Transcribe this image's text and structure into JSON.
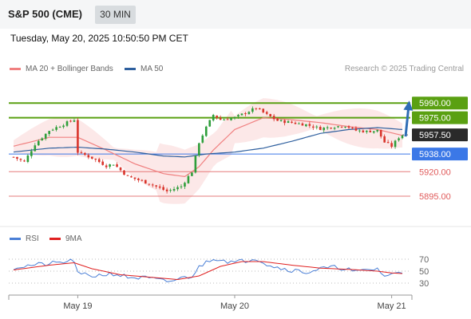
{
  "header": {
    "symbol": "S&P 500 (CME)",
    "timeframe": "30 MIN"
  },
  "datetime": "Tuesday, May 20, 2025 10:50:50 PM CET",
  "credit": "Research © 2025 Trading Central",
  "colors": {
    "resistance": "#5aa012",
    "support": "#e05a5a",
    "pivot": "#3b78e7",
    "up": "#2e9e3a",
    "down": "#d9342b",
    "ma20": "#f08080",
    "ma50": "#2e5f9e",
    "rsi": "#4a7fd6",
    "rsi_ma": "#e02020",
    "arrow": "#2f6db5"
  },
  "chart_data": [
    {
      "type": "candlestick",
      "legend": [
        "MA 20 + Bollinger Bands",
        "MA 50"
      ],
      "x_ticks": [
        "May 19",
        "May 20",
        "May 21"
      ],
      "ylim": [
        5882,
        6004
      ],
      "price_levels": [
        {
          "value": 5990.0,
          "label": "5990.00",
          "kind": "resistance"
        },
        {
          "value": 5975.0,
          "label": "5975.00",
          "kind": "resistance"
        },
        {
          "value": 5957.5,
          "label": "5957.50",
          "kind": "last"
        },
        {
          "value": 5938.0,
          "label": "5938.00",
          "kind": "pivot"
        },
        {
          "value": 5920.0,
          "label": "5920.00",
          "kind": "support"
        },
        {
          "value": 5895.0,
          "label": "5895.00",
          "kind": "support"
        }
      ],
      "last_price": 5957.5,
      "anchors": [
        [
          0,
          5935
        ],
        [
          3,
          5930
        ],
        [
          6,
          5948
        ],
        [
          10,
          5962
        ],
        [
          15,
          5970
        ],
        [
          17,
          5973
        ],
        [
          18,
          5940
        ],
        [
          22,
          5934
        ],
        [
          26,
          5926
        ],
        [
          28,
          5928
        ],
        [
          32,
          5915
        ],
        [
          38,
          5908
        ],
        [
          43,
          5900
        ],
        [
          47,
          5905
        ],
        [
          50,
          5920
        ],
        [
          52,
          5950
        ],
        [
          54,
          5965
        ],
        [
          56,
          5978
        ],
        [
          58,
          5973
        ],
        [
          62,
          5975
        ],
        [
          68,
          5985
        ],
        [
          71,
          5978
        ],
        [
          74,
          5972
        ],
        [
          78,
          5970
        ],
        [
          82,
          5968
        ],
        [
          86,
          5964
        ],
        [
          90,
          5966
        ],
        [
          93,
          5967
        ],
        [
          96,
          5962
        ],
        [
          99,
          5961
        ],
        [
          102,
          5962
        ],
        [
          104,
          5950
        ],
        [
          106,
          5946
        ],
        [
          108,
          5955
        ],
        [
          109,
          5957.5
        ]
      ],
      "ma20": [
        [
          0,
          5946
        ],
        [
          10,
          5955
        ],
        [
          18,
          5955
        ],
        [
          26,
          5942
        ],
        [
          34,
          5928
        ],
        [
          42,
          5918
        ],
        [
          48,
          5915
        ],
        [
          52,
          5925
        ],
        [
          56,
          5942
        ],
        [
          62,
          5963
        ],
        [
          70,
          5975
        ],
        [
          78,
          5973
        ],
        [
          86,
          5970
        ],
        [
          94,
          5966
        ],
        [
          102,
          5963
        ],
        [
          109,
          5957
        ]
      ],
      "ma50": [
        [
          0,
          5940
        ],
        [
          10,
          5944
        ],
        [
          18,
          5945
        ],
        [
          26,
          5943
        ],
        [
          34,
          5940
        ],
        [
          42,
          5936
        ],
        [
          48,
          5935
        ],
        [
          54,
          5938
        ],
        [
          62,
          5940
        ],
        [
          70,
          5944
        ],
        [
          78,
          5951
        ],
        [
          86,
          5959
        ],
        [
          94,
          5963
        ],
        [
          102,
          5965
        ],
        [
          109,
          5963
        ]
      ]
    },
    {
      "type": "line",
      "legend": [
        "RSI",
        "9MA"
      ],
      "y_ticks": [
        70,
        50,
        30
      ],
      "ylim": [
        10,
        90
      ],
      "rsi": [
        [
          0,
          56
        ],
        [
          5,
          60
        ],
        [
          10,
          62
        ],
        [
          15,
          66
        ],
        [
          17,
          68
        ],
        [
          18,
          45
        ],
        [
          22,
          42
        ],
        [
          28,
          46
        ],
        [
          32,
          40
        ],
        [
          38,
          38
        ],
        [
          43,
          32
        ],
        [
          47,
          38
        ],
        [
          50,
          42
        ],
        [
          52,
          56
        ],
        [
          54,
          66
        ],
        [
          56,
          72
        ],
        [
          58,
          70
        ],
        [
          62,
          64
        ],
        [
          68,
          72
        ],
        [
          71,
          62
        ],
        [
          74,
          56
        ],
        [
          78,
          52
        ],
        [
          82,
          48
        ],
        [
          86,
          54
        ],
        [
          90,
          56
        ],
        [
          93,
          55
        ],
        [
          96,
          48
        ],
        [
          99,
          52
        ],
        [
          102,
          54
        ],
        [
          104,
          42
        ],
        [
          106,
          44
        ],
        [
          108,
          48
        ],
        [
          109,
          49
        ]
      ],
      "rsi_ma": [
        [
          0,
          52
        ],
        [
          10,
          60
        ],
        [
          17,
          64
        ],
        [
          22,
          54
        ],
        [
          30,
          44
        ],
        [
          38,
          40
        ],
        [
          46,
          36
        ],
        [
          52,
          42
        ],
        [
          58,
          58
        ],
        [
          64,
          66
        ],
        [
          70,
          66
        ],
        [
          78,
          60
        ],
        [
          86,
          55
        ],
        [
          94,
          53
        ],
        [
          102,
          50
        ],
        [
          106,
          47
        ],
        [
          109,
          46
        ]
      ]
    }
  ]
}
